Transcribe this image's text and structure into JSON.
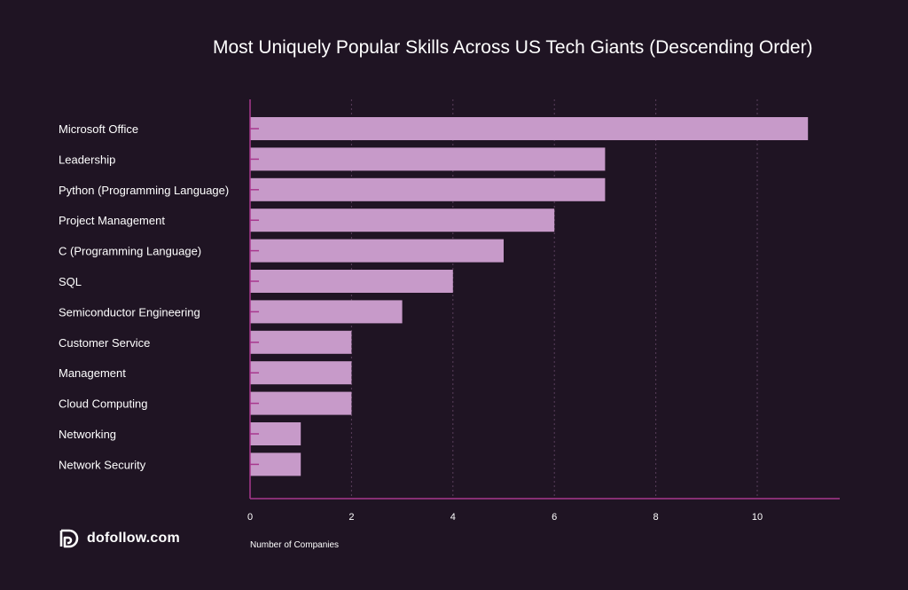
{
  "chart_data": {
    "type": "bar",
    "orientation": "horizontal",
    "title": "Most Uniquely Popular Skills Across US Tech Giants (Descending Order)",
    "xlabel": "Number of Companies",
    "ylabel": "",
    "categories": [
      "Microsoft Office",
      "Leadership",
      "Python (Programming Language)",
      "Project Management",
      "C (Programming Language)",
      "SQL",
      "Semiconductor Engineering",
      "Customer Service",
      "Management",
      "Cloud Computing",
      "Networking",
      "Network Security"
    ],
    "values": [
      11,
      7,
      7,
      6,
      5,
      4,
      3,
      2,
      2,
      2,
      1,
      1
    ],
    "xlim": [
      0,
      11.6
    ],
    "xticks": [
      0,
      2,
      4,
      6,
      8,
      10
    ],
    "grid": "vertical-dashed",
    "bar_color": "#c79ac9",
    "axis_color": "#a8388e"
  },
  "branding": {
    "logo_text": "dofollow.com",
    "logo_icon": "dofollow-logo-icon"
  }
}
